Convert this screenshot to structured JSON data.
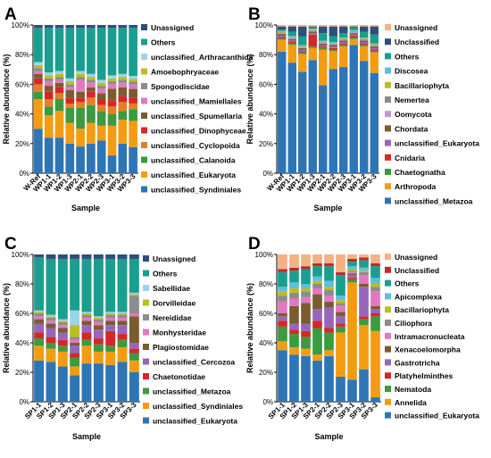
{
  "chart_data": [
    {
      "type": "bar",
      "stacked": true,
      "panel_label": "A",
      "xlabel": "Sample",
      "ylabel": "Relative abundance (%)",
      "ylim": [
        0,
        100
      ],
      "yticks": [
        "0%",
        "20%",
        "40%",
        "60%",
        "80%",
        "100%"
      ],
      "legend_position": "right",
      "categories": [
        "W-Ref",
        "WP1-1",
        "WP1-2",
        "WP1-3",
        "WP2-1",
        "WP2-2",
        "WP2-3",
        "WP3-1",
        "WP3-2",
        "WP3-3"
      ],
      "series": [
        {
          "name": "unclassified_Syndiniales",
          "color": "#2e75b6",
          "values": [
            30,
            24,
            24,
            20,
            18,
            20,
            22,
            12,
            20,
            18
          ]
        },
        {
          "name": "unclassified_Eukaryota",
          "color": "#f39c12",
          "values": [
            20,
            15,
            18,
            14,
            12,
            14,
            10,
            20,
            16,
            18
          ]
        },
        {
          "name": "unclassified_Calanoida",
          "color": "#3c9a3f",
          "values": [
            5,
            6,
            8,
            10,
            14,
            12,
            10,
            8,
            6,
            8
          ]
        },
        {
          "name": "unclassified_Cyclopoida",
          "color": "#e67e22",
          "values": [
            5,
            5,
            4,
            3,
            4,
            5,
            4,
            5,
            6,
            4
          ]
        },
        {
          "name": "unclassified_Dinophyceae",
          "color": "#d62728",
          "values": [
            4,
            5,
            4,
            4,
            3,
            4,
            4,
            4,
            4,
            4
          ]
        },
        {
          "name": "unclassified_Spumellaria",
          "color": "#7a5c2e",
          "values": [
            3,
            4,
            3,
            5,
            4,
            3,
            4,
            8,
            6,
            6
          ]
        },
        {
          "name": "unclassified_Mamiellales",
          "color": "#e377c2",
          "values": [
            2,
            3,
            2,
            2,
            8,
            3,
            3,
            3,
            3,
            3
          ]
        },
        {
          "name": "Spongodiscidae",
          "color": "#8c8c8c",
          "values": [
            2,
            2,
            2,
            2,
            2,
            2,
            2,
            2,
            2,
            2
          ]
        },
        {
          "name": "Amoebophryaceae",
          "color": "#bcbd22",
          "values": [
            2,
            2,
            2,
            2,
            2,
            2,
            2,
            2,
            2,
            2
          ]
        },
        {
          "name": "unclassified_Arthracanthida",
          "color": "#9dd3e8",
          "values": [
            2,
            2,
            2,
            2,
            2,
            2,
            2,
            2,
            2,
            2
          ]
        },
        {
          "name": "Others",
          "color": "#1a9e8f",
          "values": [
            23,
            30,
            29,
            34,
            29,
            31,
            35,
            32,
            31,
            33
          ]
        },
        {
          "name": "Unassigned",
          "color": "#2f4e7a",
          "values": [
            2,
            2,
            2,
            2,
            2,
            2,
            2,
            2,
            2,
            2
          ]
        }
      ]
    },
    {
      "type": "bar",
      "stacked": true,
      "panel_label": "B",
      "xlabel": "Sample",
      "ylabel": "Relative abundance (%)",
      "ylim": [
        0,
        100
      ],
      "yticks": [
        "0%",
        "20%",
        "40%",
        "60%",
        "80%",
        "100%"
      ],
      "legend_position": "right",
      "categories": [
        "W-Ref",
        "WP1-1",
        "WP1-2",
        "WP1-3",
        "WP2-1",
        "WP2-2",
        "WP2-3",
        "WP3-1",
        "WP3-2",
        "WP3-3"
      ],
      "series": [
        {
          "name": "unclassified_Metazoa",
          "color": "#2e75b6",
          "values": [
            82,
            75,
            68,
            76,
            59,
            70,
            72,
            87,
            76,
            68
          ]
        },
        {
          "name": "Arthropoda",
          "color": "#f39c12",
          "values": [
            8,
            12,
            12,
            8,
            24,
            12,
            14,
            4,
            10,
            14
          ]
        },
        {
          "name": "Chaetognatha",
          "color": "#3c9a3f",
          "values": [
            1,
            1,
            1,
            1,
            1,
            1,
            1,
            1,
            1,
            1
          ]
        },
        {
          "name": "Cnidaria",
          "color": "#d62728",
          "values": [
            1,
            1,
            1,
            8,
            1,
            1,
            1,
            1,
            1,
            1
          ]
        },
        {
          "name": "unclassified_Eukaryota",
          "color": "#9467bd",
          "values": [
            1,
            1,
            1,
            1,
            1,
            1,
            1,
            1,
            1,
            1
          ]
        },
        {
          "name": "Chordata",
          "color": "#7a5c2e",
          "values": [
            1,
            1,
            1,
            1,
            1,
            1,
            1,
            1,
            1,
            1
          ]
        },
        {
          "name": "Oomycota",
          "color": "#c39bd3",
          "values": [
            0.5,
            0.5,
            0.5,
            0.5,
            0.5,
            0.5,
            0.5,
            0.5,
            0.5,
            0.5
          ]
        },
        {
          "name": "Nemertea",
          "color": "#8c8c8c",
          "values": [
            0.5,
            0.5,
            0.5,
            0.5,
            0.5,
            0.5,
            0.5,
            0.5,
            0.5,
            0.5
          ]
        },
        {
          "name": "Bacillariophyta",
          "color": "#bcbd22",
          "values": [
            0.5,
            0.5,
            0.5,
            0.5,
            0.5,
            0.5,
            0.5,
            0.5,
            0.5,
            0.5
          ]
        },
        {
          "name": "Discosea",
          "color": "#5bc0de",
          "values": [
            0.5,
            0.5,
            0.5,
            0.5,
            0.5,
            0.5,
            0.5,
            0.5,
            0.5,
            0.5
          ]
        },
        {
          "name": "Others",
          "color": "#1a9e8f",
          "values": [
            1,
            3,
            6,
            1,
            5,
            4,
            3,
            2,
            4,
            6
          ]
        },
        {
          "name": "Unclassified",
          "color": "#2f4e7a",
          "values": [
            2,
            3.5,
            6.5,
            0.5,
            4.5,
            6.5,
            4.5,
            0.5,
            3.5,
            5.5
          ]
        },
        {
          "name": "Unassigned",
          "color": "#f4b183",
          "values": [
            1,
            1,
            1,
            1,
            1,
            1,
            1,
            1,
            1,
            1
          ]
        }
      ]
    },
    {
      "type": "bar",
      "stacked": true,
      "panel_label": "C",
      "xlabel": "Sample",
      "ylabel": "Relative abundance (%)",
      "ylim": [
        0,
        100
      ],
      "yticks": [
        "0%",
        "20%",
        "40%",
        "60%",
        "80%",
        "100%"
      ],
      "legend_position": "right",
      "categories": [
        "SP1-1",
        "SP1-2",
        "SP1-3",
        "SP2-1",
        "SP2-2",
        "SP2-3",
        "SP3-1",
        "SP3-2",
        "SP3-3"
      ],
      "series": [
        {
          "name": "unclassified_Eukaryota",
          "color": "#2e75b6",
          "values": [
            28,
            27,
            24,
            18,
            26,
            26,
            25,
            27,
            20
          ]
        },
        {
          "name": "unclassified_Syndiniales",
          "color": "#f39c12",
          "values": [
            10,
            9,
            10,
            6,
            12,
            8,
            9,
            10,
            8
          ]
        },
        {
          "name": "unclassified_Metazoa",
          "color": "#3c9a3f",
          "values": [
            5,
            4,
            4,
            6,
            4,
            5,
            4,
            5,
            5
          ]
        },
        {
          "name": "Chaetonotidae",
          "color": "#d62728",
          "values": [
            4,
            4,
            4,
            3,
            5,
            4,
            10,
            4,
            3
          ]
        },
        {
          "name": "unclassified_Cercozoa",
          "color": "#9467bd",
          "values": [
            6,
            6,
            5,
            5,
            5,
            6,
            4,
            6,
            4
          ]
        },
        {
          "name": "Plagiostomidae",
          "color": "#7a5c2e",
          "values": [
            3,
            3,
            3,
            2,
            3,
            3,
            3,
            3,
            18
          ]
        },
        {
          "name": "Monhysteridae",
          "color": "#e377c2",
          "values": [
            2,
            2,
            2,
            2,
            2,
            2,
            2,
            2,
            2
          ]
        },
        {
          "name": "Nereididae",
          "color": "#8c8c8c",
          "values": [
            2,
            2,
            2,
            2,
            2,
            2,
            2,
            2,
            12
          ]
        },
        {
          "name": "Dorvilleidae",
          "color": "#bcbd22",
          "values": [
            1,
            1,
            1,
            8,
            1,
            1,
            1,
            1,
            1
          ]
        },
        {
          "name": "Sabellidae",
          "color": "#9dd3e8",
          "values": [
            1,
            1,
            1,
            10,
            1,
            1,
            1,
            1,
            1
          ]
        },
        {
          "name": "Others",
          "color": "#1a9e8f",
          "values": [
            36,
            38,
            41,
            35,
            36,
            39,
            36,
            36,
            23
          ]
        },
        {
          "name": "Unassigned",
          "color": "#2f4e7a",
          "values": [
            2,
            3,
            3,
            3,
            3,
            3,
            3,
            3,
            3
          ]
        }
      ]
    },
    {
      "type": "bar",
      "stacked": true,
      "panel_label": "D",
      "xlabel": "Sample",
      "ylabel": "Relative abundance (%)",
      "ylim": [
        0,
        100
      ],
      "yticks": [
        "0%",
        "20%",
        "40%",
        "60%",
        "80%",
        "100%"
      ],
      "legend_position": "right",
      "categories": [
        "SP1-1",
        "SP1-2",
        "SP1-3",
        "SP2-1",
        "SP2-2",
        "SP2-3",
        "SP3-1",
        "SP3-2",
        "SP3-3"
      ],
      "series": [
        {
          "name": "unclassified_Eukaryota",
          "color": "#2e75b6",
          "values": [
            35,
            32,
            31,
            28,
            31,
            17,
            15,
            22,
            3
          ]
        },
        {
          "name": "Annelida",
          "color": "#f39c12",
          "values": [
            6,
            5,
            5,
            4,
            4,
            30,
            66,
            30,
            45
          ]
        },
        {
          "name": "Nematoda",
          "color": "#3c9a3f",
          "values": [
            10,
            9,
            8,
            18,
            12,
            4,
            2,
            4,
            10
          ]
        },
        {
          "name": "Platyhelminthes",
          "color": "#d62728",
          "values": [
            4,
            3,
            4,
            5,
            3,
            2,
            1,
            2,
            2
          ]
        },
        {
          "name": "Gastrotricha",
          "color": "#9467bd",
          "values": [
            3,
            4,
            5,
            8,
            14,
            5,
            2,
            20,
            3
          ]
        },
        {
          "name": "Xenacoelomorpha",
          "color": "#7a5c2e",
          "values": [
            2,
            12,
            14,
            10,
            4,
            3,
            1,
            2,
            2
          ]
        },
        {
          "name": "Intramacronucleata",
          "color": "#e377c2",
          "values": [
            8,
            5,
            4,
            4,
            4,
            4,
            1,
            6,
            10
          ]
        },
        {
          "name": "Ciliophora",
          "color": "#8c8c8c",
          "values": [
            4,
            4,
            4,
            3,
            4,
            2,
            1,
            2,
            3
          ]
        },
        {
          "name": "Bacillariophyta",
          "color": "#bcbd22",
          "values": [
            3,
            3,
            2,
            2,
            2,
            2,
            1,
            1,
            2
          ]
        },
        {
          "name": "Apicomplexa",
          "color": "#5bc0de",
          "values": [
            3,
            4,
            3,
            3,
            4,
            3,
            2,
            2,
            4
          ]
        },
        {
          "name": "Others",
          "color": "#1a9e8f",
          "values": [
            10,
            8,
            10,
            7,
            10,
            14,
            3,
            5,
            8
          ]
        },
        {
          "name": "Unclassified",
          "color": "#c0292b",
          "values": [
            2,
            2,
            2,
            2,
            2,
            2,
            2,
            2,
            2
          ]
        },
        {
          "name": "Unassigned",
          "color": "#f4b183",
          "values": [
            10,
            9,
            8,
            6,
            6,
            12,
            3,
            2,
            6
          ]
        }
      ]
    }
  ]
}
